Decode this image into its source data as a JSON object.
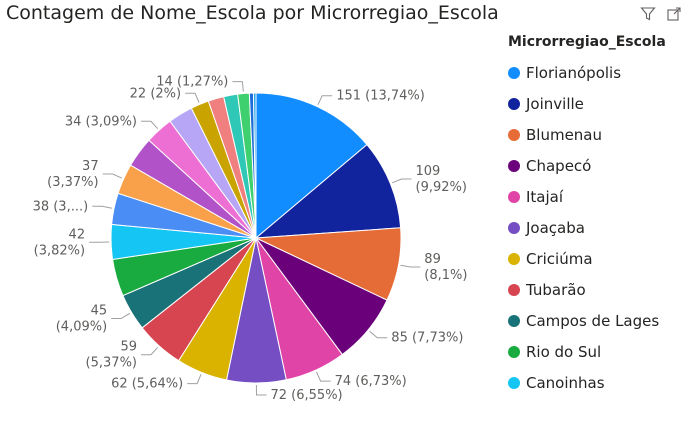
{
  "title": "Contagem de Nome_Escola por Microrregiao_Escola",
  "toolbar": {
    "filter_icon": "filter-icon",
    "expand_icon": "focus-mode-icon"
  },
  "legend": {
    "title": "Microrregiao_Escola",
    "items": [
      {
        "label": "Florianópolis",
        "color": "#118DFF"
      },
      {
        "label": "Joinville",
        "color": "#12239E"
      },
      {
        "label": "Blumenau",
        "color": "#E66C37"
      },
      {
        "label": "Chapecó",
        "color": "#6B007B"
      },
      {
        "label": "Itajaí",
        "color": "#E044A7"
      },
      {
        "label": "Joaçaba",
        "color": "#744EC2"
      },
      {
        "label": "Criciúma",
        "color": "#D9B300"
      },
      {
        "label": "Tubarão",
        "color": "#D64550"
      },
      {
        "label": "Campos de Lages",
        "color": "#197278"
      },
      {
        "label": "Rio do Sul",
        "color": "#1AAB40"
      },
      {
        "label": "Canoinhas",
        "color": "#15C6F4"
      }
    ]
  },
  "chart_data": {
    "type": "pie",
    "title": "Contagem de Nome_Escola por Microrregiao_Escola",
    "legend_title": "Microrregiao_Escola",
    "legend_position": "right",
    "slices": [
      {
        "name": "Florianópolis",
        "value": 151,
        "label": [
          "151 (13,74%)"
        ],
        "color": "#118DFF"
      },
      {
        "name": "Joinville",
        "value": 109,
        "label": [
          "109",
          "(9,92%)"
        ],
        "color": "#12239E"
      },
      {
        "name": "Blumenau",
        "value": 89,
        "label": [
          "89",
          "(8,1%)"
        ],
        "color": "#E66C37"
      },
      {
        "name": "Chapecó",
        "value": 85,
        "label": [
          "85 (7,73%)"
        ],
        "color": "#6B007B"
      },
      {
        "name": "Itajaí",
        "value": 74,
        "label": [
          "74 (6,73%)"
        ],
        "color": "#E044A7"
      },
      {
        "name": "Joaçaba",
        "value": 72,
        "label": [
          "72 (6,55%)"
        ],
        "color": "#744EC2"
      },
      {
        "name": "Criciúma",
        "value": 62,
        "label": [
          "62 (5,64%)"
        ],
        "color": "#D9B300"
      },
      {
        "name": "Tubarão",
        "value": 59,
        "label": [
          "59",
          "(5,37%)"
        ],
        "color": "#D64550"
      },
      {
        "name": "Campos de Lages",
        "value": 45,
        "label": [
          "45",
          "(4,09%)"
        ],
        "color": "#197278"
      },
      {
        "name": "Rio do Sul",
        "value": 45,
        "label": [],
        "color": "#1AAB40"
      },
      {
        "name": "Canoinhas",
        "value": 42,
        "label": [
          "42",
          "(3,82%)"
        ],
        "color": "#15C6F4"
      },
      {
        "value": 38,
        "label": [
          "38 (3,...)"
        ],
        "color": "#4A8DF5"
      },
      {
        "value": 37,
        "label": [
          "37",
          "(3,37%)"
        ],
        "color": "#F8A04A"
      },
      {
        "value": 37,
        "label": [],
        "color": "#B152C9"
      },
      {
        "value": 34,
        "label": [
          "34 (3,09%)"
        ],
        "color": "#EE6FD4"
      },
      {
        "value": 30,
        "label": [],
        "color": "#B6A6F5"
      },
      {
        "value": 22,
        "label": [
          "22 (2%)"
        ],
        "color": "#C9A400"
      },
      {
        "value": 19,
        "label": [],
        "color": "#F08080"
      },
      {
        "value": 17,
        "label": [],
        "color": "#2FC7B5"
      },
      {
        "value": 14,
        "label": [
          "14 (1,27%)"
        ],
        "color": "#3ED06E"
      },
      {
        "value": 5,
        "label": [],
        "color": "#1C6FD9"
      },
      {
        "value": 3,
        "label": [],
        "color": "#17A2E6"
      }
    ]
  }
}
